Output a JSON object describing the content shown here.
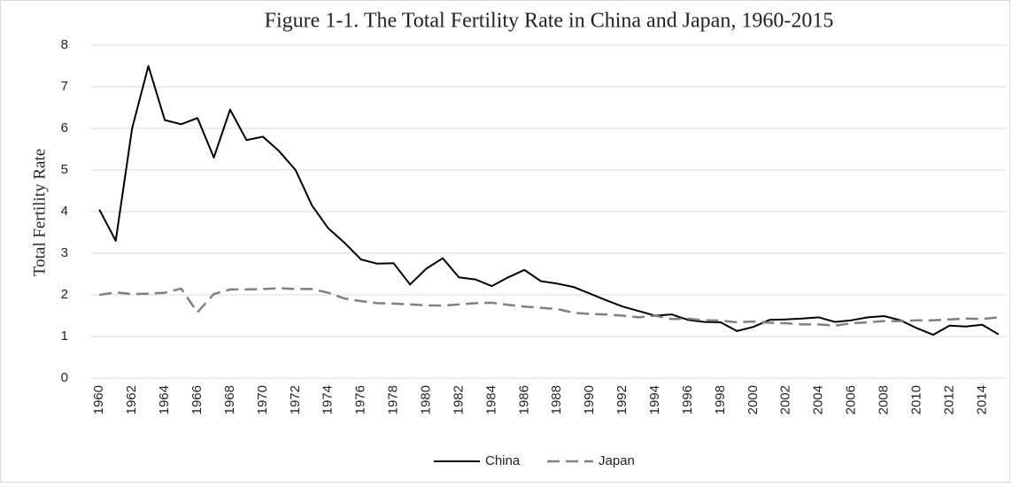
{
  "chart_data": {
    "type": "line",
    "title": "Figure 1-1. The Total Fertility Rate in China and Japan, 1960-2015",
    "y_label": "Total Fertility Rate",
    "categories": [
      "1960",
      null,
      "1962",
      null,
      "1964",
      null,
      "1966",
      null,
      "1968",
      null,
      "1970",
      null,
      "1972",
      null,
      "1974",
      null,
      "1976",
      null,
      "1978",
      null,
      "1980",
      null,
      "1982",
      null,
      "1984",
      null,
      "1986",
      null,
      "1988",
      null,
      "1990",
      null,
      "1992",
      null,
      "1994",
      null,
      "1996",
      null,
      "1998",
      null,
      "2000",
      null,
      "2002",
      null,
      "2004",
      null,
      "2006",
      null,
      "2008",
      null,
      "2010",
      null,
      "2012",
      null,
      "2014",
      null
    ],
    "series": [
      {
        "name": "China",
        "color": "#000000",
        "dash": false,
        "values": [
          4.05,
          3.3,
          6.0,
          7.5,
          6.2,
          6.1,
          6.25,
          5.3,
          6.45,
          5.72,
          5.8,
          5.45,
          5.0,
          4.15,
          3.6,
          3.25,
          2.85,
          2.75,
          2.76,
          2.25,
          2.63,
          2.88,
          2.42,
          2.37,
          2.21,
          2.42,
          2.6,
          2.33,
          2.27,
          2.19,
          2.03,
          1.87,
          1.72,
          1.61,
          1.5,
          1.53,
          1.4,
          1.35,
          1.34,
          1.13,
          1.23,
          1.4,
          1.41,
          1.43,
          1.46,
          1.35,
          1.39,
          1.46,
          1.49,
          1.39,
          1.2,
          1.04,
          1.26,
          1.24,
          1.28,
          1.05
        ]
      },
      {
        "name": "Japan",
        "color": "#808080",
        "dash": true,
        "values": [
          2.0,
          2.06,
          2.02,
          2.03,
          2.05,
          2.15,
          1.58,
          2.02,
          2.13,
          2.13,
          2.14,
          2.16,
          2.14,
          2.14,
          2.05,
          1.91,
          1.85,
          1.8,
          1.79,
          1.77,
          1.75,
          1.74,
          1.77,
          1.8,
          1.81,
          1.76,
          1.72,
          1.69,
          1.66,
          1.57,
          1.54,
          1.53,
          1.5,
          1.46,
          1.5,
          1.42,
          1.43,
          1.39,
          1.38,
          1.34,
          1.36,
          1.33,
          1.32,
          1.29,
          1.29,
          1.26,
          1.32,
          1.34,
          1.37,
          1.37,
          1.39,
          1.39,
          1.41,
          1.43,
          1.42,
          1.46
        ]
      }
    ],
    "ylim": [
      0,
      8
    ],
    "yticks": [
      0,
      1,
      2,
      3,
      4,
      5,
      6,
      7,
      8
    ],
    "grid": true,
    "legend": "bottom"
  }
}
